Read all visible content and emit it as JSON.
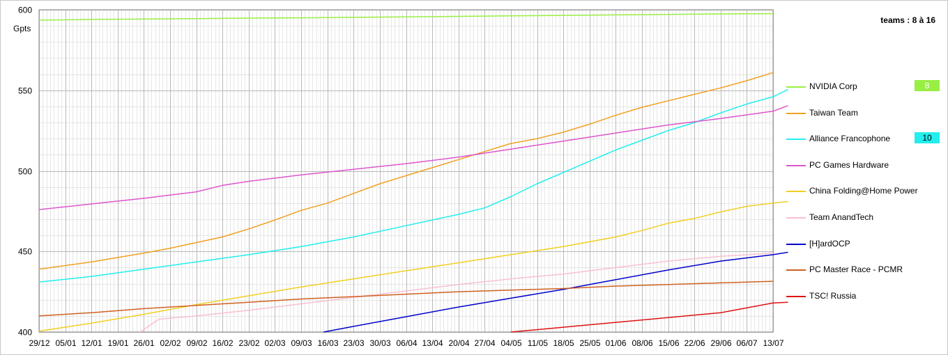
{
  "chart_data": {
    "type": "line",
    "title": "teams : 8 à 16",
    "ylabel": "Gpts",
    "xlabel": "",
    "ylim": [
      400,
      600
    ],
    "yticks": [
      400,
      450,
      500,
      550,
      600
    ],
    "xticks": [
      "29/12",
      "05/01",
      "12/01",
      "19/01",
      "26/01",
      "02/02",
      "09/02",
      "16/02",
      "23/02",
      "02/03",
      "09/03",
      "16/03",
      "23/03",
      "30/03",
      "06/04",
      "13/04",
      "20/04",
      "27/04",
      "04/05",
      "11/05",
      "18/05",
      "25/05",
      "01/06",
      "08/06",
      "15/06",
      "22/06",
      "29/06",
      "06/07",
      "13/07"
    ],
    "x_day_span": [
      0,
      196
    ],
    "grid": "on",
    "legend_position": "right",
    "series": [
      {
        "name": "NVIDIA Corp",
        "color": "#99ee44",
        "rank": "8",
        "points": [
          [
            0,
            593.5
          ],
          [
            14,
            594
          ],
          [
            28,
            594.2
          ],
          [
            42,
            594.5
          ],
          [
            56,
            594.8
          ],
          [
            70,
            595
          ],
          [
            84,
            595.3
          ],
          [
            98,
            595.6
          ],
          [
            112,
            595.9
          ],
          [
            126,
            596.2
          ],
          [
            140,
            596.5
          ],
          [
            154,
            596.8
          ],
          [
            168,
            597.1
          ],
          [
            182,
            597.4
          ],
          [
            196,
            597.6
          ]
        ]
      },
      {
        "name": "Taiwan Team",
        "color": "#f0a020",
        "rank": "",
        "points": [
          [
            0,
            439
          ],
          [
            14,
            443.5
          ],
          [
            28,
            449
          ],
          [
            35,
            452
          ],
          [
            42,
            455.5
          ],
          [
            49,
            459
          ],
          [
            56,
            464
          ],
          [
            63,
            469.5
          ],
          [
            70,
            475.5
          ],
          [
            77,
            480
          ],
          [
            84,
            486
          ],
          [
            91,
            492
          ],
          [
            98,
            497
          ],
          [
            105,
            502
          ],
          [
            112,
            507
          ],
          [
            119,
            512
          ],
          [
            126,
            517
          ],
          [
            133,
            520
          ],
          [
            140,
            524
          ],
          [
            147,
            529
          ],
          [
            154,
            534.5
          ],
          [
            161,
            539.5
          ],
          [
            168,
            543.5
          ],
          [
            175,
            547.5
          ],
          [
            182,
            551.5
          ],
          [
            189,
            556
          ],
          [
            196,
            561
          ]
        ]
      },
      {
        "name": "Alliance Francophone",
        "color": "#22eeee",
        "rank": "10",
        "points": [
          [
            0,
            431
          ],
          [
            14,
            434.5
          ],
          [
            28,
            439
          ],
          [
            42,
            443.5
          ],
          [
            56,
            448
          ],
          [
            70,
            453
          ],
          [
            84,
            459
          ],
          [
            98,
            466
          ],
          [
            112,
            473
          ],
          [
            119,
            477
          ],
          [
            126,
            484
          ],
          [
            133,
            492
          ],
          [
            140,
            499
          ],
          [
            147,
            506
          ],
          [
            154,
            513
          ],
          [
            161,
            519
          ],
          [
            168,
            525
          ],
          [
            175,
            530
          ],
          [
            182,
            536
          ],
          [
            189,
            541.5
          ],
          [
            196,
            546
          ],
          [
            200,
            550.5
          ]
        ]
      },
      {
        "name": "PC Games Hardware",
        "color": "#dd55cc",
        "rank": "",
        "points": [
          [
            0,
            476
          ],
          [
            14,
            479.5
          ],
          [
            28,
            483
          ],
          [
            42,
            487
          ],
          [
            49,
            491
          ],
          [
            56,
            493.5
          ],
          [
            70,
            497.5
          ],
          [
            84,
            501
          ],
          [
            98,
            504.5
          ],
          [
            112,
            508.5
          ],
          [
            126,
            513.5
          ],
          [
            140,
            518.5
          ],
          [
            154,
            523.5
          ],
          [
            168,
            528.5
          ],
          [
            182,
            532.5
          ],
          [
            196,
            537
          ],
          [
            200,
            540.5
          ]
        ]
      },
      {
        "name": "China Folding@Home Power",
        "color": "#f0d020",
        "rank": "",
        "points": [
          [
            0,
            400.5
          ],
          [
            14,
            405.5
          ],
          [
            28,
            411
          ],
          [
            42,
            417
          ],
          [
            56,
            422.5
          ],
          [
            70,
            428
          ],
          [
            84,
            433
          ],
          [
            98,
            438
          ],
          [
            112,
            443
          ],
          [
            126,
            448
          ],
          [
            140,
            453
          ],
          [
            154,
            459
          ],
          [
            161,
            463
          ],
          [
            168,
            467.5
          ],
          [
            175,
            470.5
          ],
          [
            182,
            474.5
          ],
          [
            189,
            478
          ],
          [
            196,
            480
          ],
          [
            200,
            481
          ]
        ]
      },
      {
        "name": "Team AnandTech",
        "color": "#f8c0d0",
        "rank": "",
        "points": [
          [
            27,
            400
          ],
          [
            32,
            408
          ],
          [
            42,
            410
          ],
          [
            56,
            413.5
          ],
          [
            70,
            417.5
          ],
          [
            84,
            421.5
          ],
          [
            98,
            425.5
          ],
          [
            112,
            429.5
          ],
          [
            126,
            433
          ],
          [
            140,
            436
          ],
          [
            154,
            440
          ],
          [
            168,
            444
          ],
          [
            182,
            447
          ],
          [
            196,
            449
          ]
        ]
      },
      {
        "name": "[H]ardOCP",
        "color": "#0000cc",
        "rank": "",
        "points": [
          [
            76,
            400
          ],
          [
            84,
            403.5
          ],
          [
            98,
            409.5
          ],
          [
            112,
            415.5
          ],
          [
            126,
            421
          ],
          [
            140,
            426.5
          ],
          [
            154,
            432.5
          ],
          [
            168,
            438.5
          ],
          [
            182,
            444
          ],
          [
            196,
            448
          ],
          [
            200,
            449.5
          ]
        ]
      },
      {
        "name": "PC Master Race - PCMR",
        "color": "#d06020",
        "rank": "",
        "points": [
          [
            0,
            410
          ],
          [
            14,
            412
          ],
          [
            28,
            414.5
          ],
          [
            42,
            416.5
          ],
          [
            56,
            418.5
          ],
          [
            70,
            420.5
          ],
          [
            84,
            422
          ],
          [
            98,
            423.5
          ],
          [
            112,
            425
          ],
          [
            126,
            426
          ],
          [
            140,
            427
          ],
          [
            154,
            428.5
          ],
          [
            168,
            429.5
          ],
          [
            182,
            430.5
          ],
          [
            196,
            431.5
          ]
        ]
      },
      {
        "name": "TSC! Russia",
        "color": "#dd1111",
        "rank": "",
        "points": [
          [
            126,
            400
          ],
          [
            140,
            403
          ],
          [
            154,
            406
          ],
          [
            168,
            409
          ],
          [
            182,
            412
          ],
          [
            196,
            418
          ],
          [
            200,
            418.5
          ]
        ]
      }
    ]
  }
}
